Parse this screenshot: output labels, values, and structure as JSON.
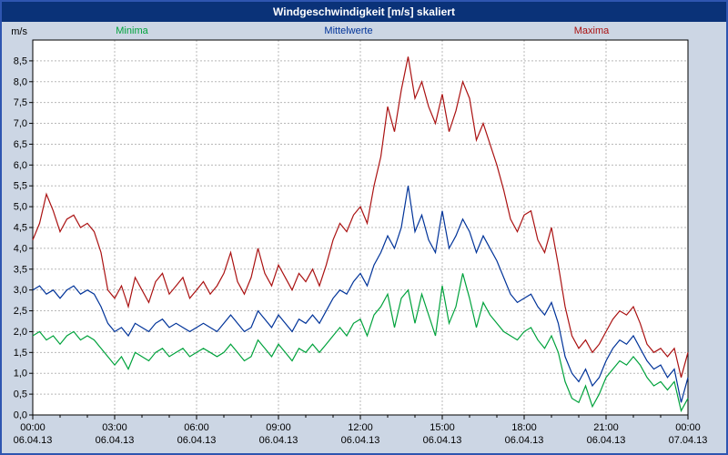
{
  "title": "Windgeschwindigkeit [m/s] skaliert",
  "colors": {
    "titlebar_bg": "#0a3278",
    "titlebar_text": "#ffffff",
    "window_bg": "#ccd6e4",
    "plot_bg": "#ffffff",
    "window_border": "#2e55b0",
    "grid": "#b8b8b8",
    "axis": "#000000"
  },
  "chart_data": {
    "type": "line",
    "title": "Windgeschwindigkeit [m/s] skaliert",
    "ylabel": "m/s",
    "ylim": [
      0,
      9
    ],
    "ytick_step": 0.5,
    "ytick_labels": [
      "0,0",
      "0,5",
      "1,0",
      "1,5",
      "2,0",
      "2,5",
      "3,0",
      "3,5",
      "4,0",
      "4,5",
      "5,0",
      "5,5",
      "6,0",
      "6,5",
      "7,0",
      "7,5",
      "8,0",
      "8,5"
    ],
    "x_step_hours": 0.25,
    "x_range_hours": [
      0,
      24
    ],
    "xtick_hours": [
      0,
      3,
      6,
      9,
      12,
      15,
      18,
      21,
      24
    ],
    "xtick_labels": [
      "00:00",
      "03:00",
      "06:00",
      "09:00",
      "12:00",
      "15:00",
      "18:00",
      "21:00",
      "00:00"
    ],
    "xtick_dates": [
      "06.04.13",
      "06.04.13",
      "06.04.13",
      "06.04.13",
      "06.04.13",
      "06.04.13",
      "06.04.13",
      "06.04.13",
      "07.04.13"
    ],
    "grid": "dashed",
    "legend_position": "top",
    "series": [
      {
        "name": "Minima",
        "color": "#00a23c",
        "values": [
          1.9,
          2.0,
          1.8,
          1.9,
          1.7,
          1.9,
          2.0,
          1.8,
          1.9,
          1.8,
          1.6,
          1.4,
          1.2,
          1.4,
          1.1,
          1.5,
          1.4,
          1.3,
          1.5,
          1.6,
          1.4,
          1.5,
          1.6,
          1.4,
          1.5,
          1.6,
          1.5,
          1.4,
          1.5,
          1.7,
          1.5,
          1.3,
          1.4,
          1.8,
          1.6,
          1.4,
          1.7,
          1.5,
          1.3,
          1.6,
          1.5,
          1.7,
          1.5,
          1.7,
          1.9,
          2.1,
          1.9,
          2.2,
          2.3,
          1.9,
          2.4,
          2.6,
          2.9,
          2.1,
          2.8,
          3.0,
          2.2,
          2.9,
          2.4,
          1.9,
          3.1,
          2.2,
          2.6,
          3.4,
          2.8,
          2.1,
          2.7,
          2.4,
          2.2,
          2.0,
          1.9,
          1.8,
          2.0,
          2.1,
          1.8,
          1.6,
          1.9,
          1.5,
          0.8,
          0.4,
          0.3,
          0.7,
          0.2,
          0.5,
          0.9,
          1.1,
          1.3,
          1.2,
          1.4,
          1.2,
          0.9,
          0.7,
          0.8,
          0.6,
          0.8,
          0.1,
          0.4
        ]
      },
      {
        "name": "Mittelwerte",
        "color": "#003399",
        "values": [
          3.0,
          3.1,
          2.9,
          3.0,
          2.8,
          3.0,
          3.1,
          2.9,
          3.0,
          2.9,
          2.6,
          2.2,
          2.0,
          2.1,
          1.9,
          2.2,
          2.1,
          2.0,
          2.2,
          2.3,
          2.1,
          2.2,
          2.1,
          2.0,
          2.1,
          2.2,
          2.1,
          2.0,
          2.2,
          2.4,
          2.2,
          2.0,
          2.1,
          2.5,
          2.3,
          2.1,
          2.4,
          2.2,
          2.0,
          2.3,
          2.2,
          2.4,
          2.2,
          2.5,
          2.8,
          3.0,
          2.9,
          3.2,
          3.4,
          3.1,
          3.6,
          3.9,
          4.3,
          4.0,
          4.5,
          5.5,
          4.4,
          4.8,
          4.2,
          3.9,
          4.9,
          4.0,
          4.3,
          4.7,
          4.4,
          3.9,
          4.3,
          4.0,
          3.7,
          3.3,
          2.9,
          2.7,
          2.8,
          2.9,
          2.6,
          2.4,
          2.7,
          2.2,
          1.4,
          1.0,
          0.8,
          1.1,
          0.7,
          0.9,
          1.3,
          1.6,
          1.8,
          1.7,
          1.9,
          1.6,
          1.3,
          1.1,
          1.2,
          0.9,
          1.1,
          0.3,
          0.9
        ]
      },
      {
        "name": "Maxima",
        "color": "#aa1111",
        "values": [
          4.2,
          4.6,
          5.3,
          4.9,
          4.4,
          4.7,
          4.8,
          4.5,
          4.6,
          4.4,
          3.9,
          3.0,
          2.8,
          3.1,
          2.6,
          3.3,
          3.0,
          2.7,
          3.2,
          3.4,
          2.9,
          3.1,
          3.3,
          2.8,
          3.0,
          3.2,
          2.9,
          3.1,
          3.4,
          3.9,
          3.2,
          2.9,
          3.3,
          4.0,
          3.4,
          3.1,
          3.6,
          3.3,
          3.0,
          3.4,
          3.2,
          3.5,
          3.1,
          3.6,
          4.2,
          4.6,
          4.4,
          4.8,
          5.0,
          4.6,
          5.5,
          6.2,
          7.4,
          6.8,
          7.8,
          8.6,
          7.6,
          8.0,
          7.4,
          7.0,
          7.7,
          6.8,
          7.3,
          8.0,
          7.6,
          6.6,
          7.0,
          6.5,
          6.0,
          5.4,
          4.7,
          4.4,
          4.8,
          4.9,
          4.2,
          3.9,
          4.5,
          3.6,
          2.6,
          1.9,
          1.6,
          1.8,
          1.5,
          1.7,
          2.0,
          2.3,
          2.5,
          2.4,
          2.6,
          2.2,
          1.7,
          1.5,
          1.6,
          1.4,
          1.6,
          0.9,
          1.5
        ]
      }
    ]
  }
}
